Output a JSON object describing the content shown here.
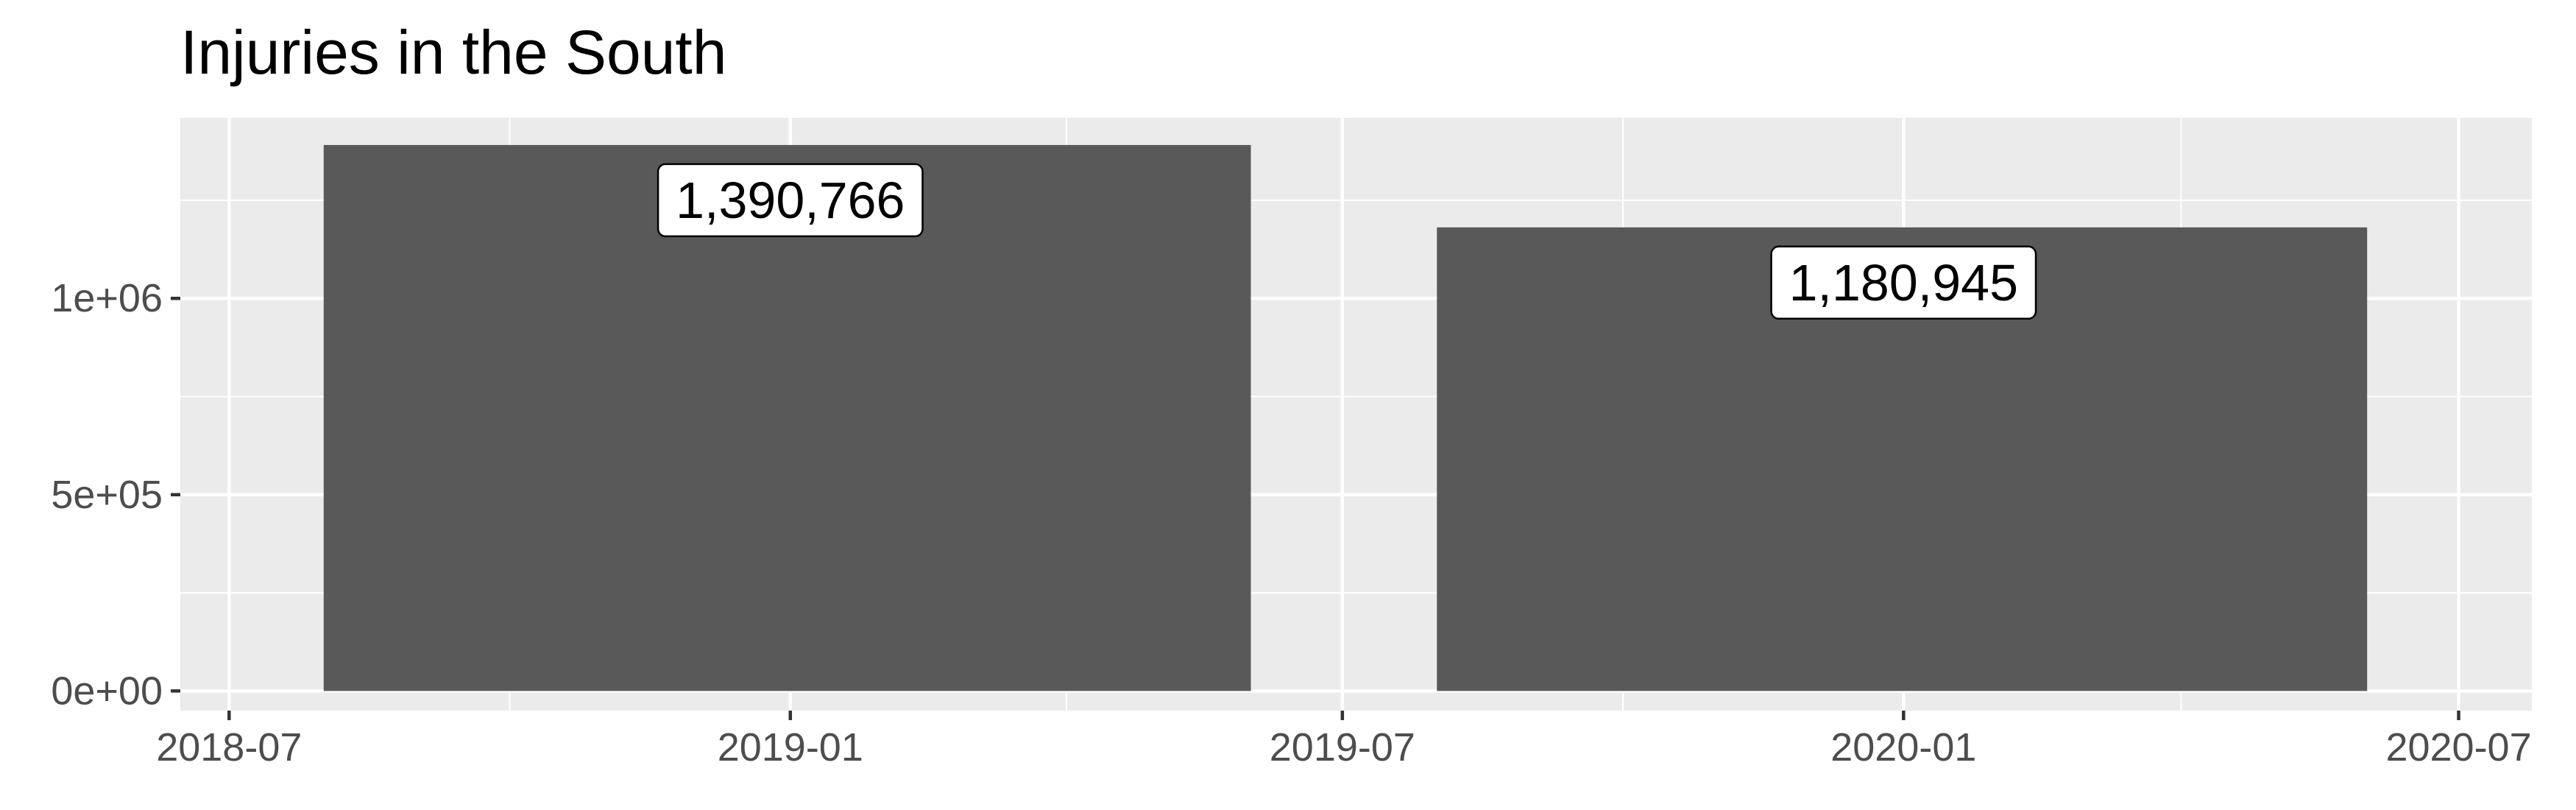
{
  "chart_data": {
    "type": "bar",
    "title": "Injuries in the South",
    "xlabel": "",
    "ylabel": "",
    "x_axis": {
      "type": "date",
      "range": [
        "2018-06-15",
        "2020-07-25"
      ],
      "ticks": [
        "2018-07-01",
        "2019-01-01",
        "2019-07-01",
        "2020-01-01",
        "2020-07-01"
      ],
      "tick_labels": [
        "2018-07",
        "2019-01",
        "2019-07",
        "2020-01",
        "2020-07"
      ]
    },
    "y_axis": {
      "range": [
        -50000,
        1460000
      ],
      "ticks": [
        0,
        500000,
        1000000
      ],
      "tick_labels": [
        "0e+00",
        "5e+05",
        "1e+06"
      ]
    },
    "bars": [
      {
        "x_start": "2018-08-01",
        "x_end": "2019-06-01",
        "center": "2019-01-01",
        "value": 1390766,
        "label": "1,390,766"
      },
      {
        "x_start": "2019-08-01",
        "x_end": "2020-06-01",
        "center": "2020-01-01",
        "value": 1180945,
        "label": "1,180,945"
      }
    ],
    "grid": true,
    "legend": "none",
    "colors": {
      "panel_background": "#ebebeb",
      "grid": "#ffffff",
      "bar_fill": "#595959",
      "label_fill": "#ffffff",
      "text": "#000000",
      "tick_text": "#4d4d4d",
      "tick_mark": "#333333"
    }
  }
}
